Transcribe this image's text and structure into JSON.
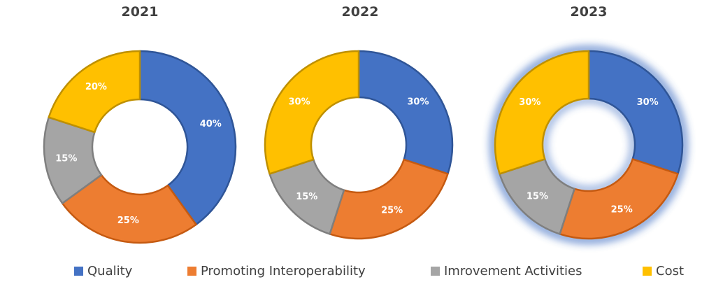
{
  "chart_data": [
    {
      "type": "pie",
      "variant": "donut",
      "title": "2021",
      "categories": [
        "Quality",
        "Promoting Interoperability",
        "Imrovement Activities",
        "Cost"
      ],
      "values": [
        40,
        25,
        15,
        20
      ],
      "data_labels": [
        "40%",
        "25%",
        "15%",
        "20%"
      ],
      "highlighted": false
    },
    {
      "type": "pie",
      "variant": "donut",
      "title": "2022",
      "categories": [
        "Quality",
        "Promoting Interoperability",
        "Imrovement Activities",
        "Cost"
      ],
      "values": [
        30,
        25,
        15,
        30
      ],
      "data_labels": [
        "30%",
        "25%",
        "15%",
        "30%"
      ],
      "highlighted": false
    },
    {
      "type": "pie",
      "variant": "donut",
      "title": "2023",
      "categories": [
        "Quality",
        "Promoting Interoperability",
        "Imrovement Activities",
        "Cost"
      ],
      "values": [
        30,
        25,
        15,
        30
      ],
      "data_labels": [
        "30%",
        "25%",
        "15%",
        "30%"
      ],
      "highlighted": true
    }
  ],
  "legend": {
    "placement": "bottom",
    "items": [
      {
        "label": "Quality",
        "color": "#4472C4"
      },
      {
        "label": "Promoting Interoperability",
        "color": "#ED7D31"
      },
      {
        "label": "Imrovement Activities",
        "color": "#A5A5A5"
      },
      {
        "label": "Cost",
        "color": "#FFC000"
      }
    ]
  },
  "colors": {
    "slice_borders": [
      "#2F5597",
      "#C55A11",
      "#7F7F7F",
      "#BF9000"
    ],
    "highlight_glow": "#4472C4"
  }
}
